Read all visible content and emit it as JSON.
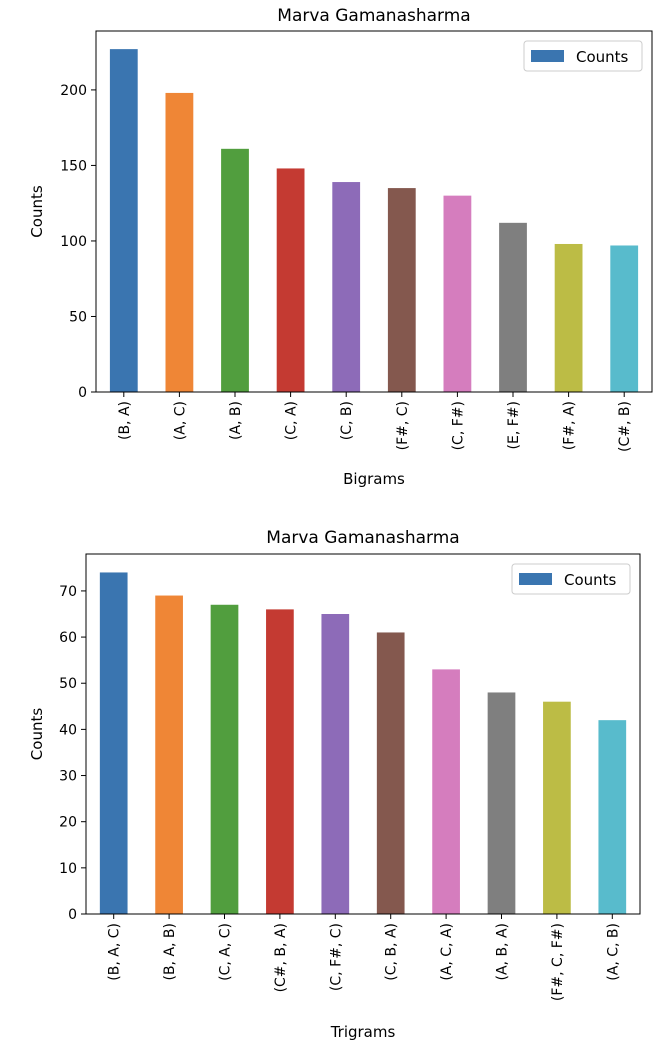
{
  "chart_data": [
    {
      "type": "bar",
      "title": "Marva Gamanasharma",
      "xlabel": "Bigrams",
      "ylabel": "Counts",
      "categories": [
        "(B, A)",
        "(A, C)",
        "(A, B)",
        "(C, A)",
        "(C, B)",
        "(F#, C)",
        "(C, F#)",
        "(E, F#)",
        "(F#, A)",
        "(C#, B)"
      ],
      "series": [
        {
          "name": "Counts",
          "values": [
            227,
            198,
            161,
            148,
            139,
            135,
            130,
            112,
            98,
            97
          ]
        }
      ],
      "colors": [
        "#3a75b0",
        "#ef8636",
        "#519e3e",
        "#c43a32",
        "#8d6bb8",
        "#84584e",
        "#d57dbe",
        "#7f7f7f",
        "#bcbc45",
        "#58bbcc"
      ],
      "ylim": [
        0,
        239
      ],
      "yticks": [
        0,
        50,
        100,
        150,
        200
      ],
      "legend": "top-right",
      "grid": false
    },
    {
      "type": "bar",
      "title": "Marva Gamanasharma",
      "xlabel": "Trigrams",
      "ylabel": "Counts",
      "categories": [
        "(B, A, C)",
        "(B, A, B)",
        "(C, A, C)",
        "(C#, B, A)",
        "(C, F#, C)",
        "(C, B, A)",
        "(A, C, A)",
        "(A, B, A)",
        "(F#, C, F#)",
        "(A, C, B)"
      ],
      "series": [
        {
          "name": "Counts",
          "values": [
            74,
            69,
            67,
            66,
            65,
            61,
            53,
            48,
            46,
            42
          ]
        }
      ],
      "colors": [
        "#3a75b0",
        "#ef8636",
        "#519e3e",
        "#c43a32",
        "#8d6bb8",
        "#84584e",
        "#d57dbe",
        "#7f7f7f",
        "#bcbc45",
        "#58bbcc"
      ],
      "ylim": [
        0,
        78
      ],
      "yticks": [
        0,
        10,
        20,
        30,
        40,
        50,
        60,
        70
      ],
      "legend": "top-right",
      "grid": false
    }
  ]
}
